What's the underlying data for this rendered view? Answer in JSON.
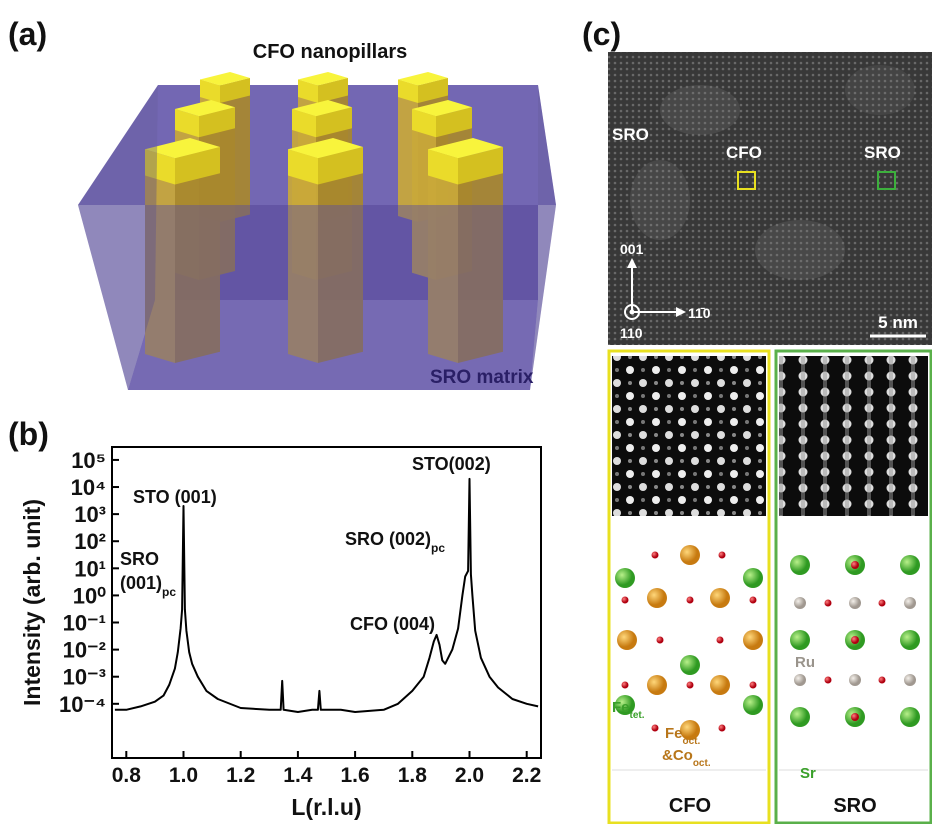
{
  "panel_a": {
    "label": "(a)",
    "pillars_label": "CFO nanopillars",
    "matrix_label": "SRO matrix"
  },
  "panel_b": {
    "label": "(b)"
  },
  "chart_data": {
    "type": "line",
    "xlabel": "L(r.l.u)",
    "ylabel": "Intensity (arb. unit)",
    "log_y": true,
    "color": "#000000",
    "xlim": [
      0.75,
      2.25
    ],
    "ylim": [
      1e-06,
      300000
    ],
    "xticks": [
      0.8,
      {
        "value": 1,
        "label": "1.0"
      },
      1.2,
      1.4,
      1.6,
      1.8,
      {
        "value": 2,
        "label": "2.0"
      },
      2.2
    ],
    "yticks": [
      {
        "value": 100000,
        "label": "10⁵"
      },
      {
        "value": 10000,
        "label": "10⁴"
      },
      {
        "value": 1000,
        "label": "10³"
      },
      {
        "value": 100,
        "label": "10²"
      },
      {
        "value": 10,
        "label": "10¹"
      },
      {
        "value": 1,
        "label": "10⁰"
      },
      {
        "value": 0.1,
        "label": "10⁻¹"
      },
      {
        "value": 0.01,
        "label": "10⁻²"
      },
      {
        "value": 0.001,
        "label": "10⁻³"
      },
      {
        "value": 0.0001,
        "label": "10⁻⁴"
      }
    ],
    "x": [
      0.76,
      0.8,
      0.85,
      0.9,
      0.93,
      0.95,
      0.97,
      0.98,
      0.99,
      0.995,
      1.0,
      1.005,
      1.01,
      1.02,
      1.03,
      1.05,
      1.08,
      1.12,
      1.2,
      1.3,
      1.34,
      1.345,
      1.35,
      1.4,
      1.45,
      1.47,
      1.475,
      1.48,
      1.55,
      1.6,
      1.7,
      1.75,
      1.8,
      1.84,
      1.86,
      1.875,
      1.885,
      1.895,
      1.905,
      1.915,
      1.94,
      1.96,
      1.975,
      1.985,
      1.995,
      2.0,
      2.005,
      2.01,
      2.02,
      2.04,
      2.07,
      2.1,
      2.15,
      2.2,
      2.24
    ],
    "values": [
      6e-05,
      6e-05,
      8e-05,
      0.00012,
      0.0002,
      0.0005,
      0.002,
      0.008,
      0.06,
      0.3,
      2000,
      0.3,
      0.05,
      0.008,
      0.003,
      0.001,
      0.0003,
      0.00015,
      7e-05,
      6e-05,
      6e-05,
      0.0007,
      6e-05,
      5e-05,
      6e-05,
      6e-05,
      0.0003,
      6e-05,
      6e-05,
      5e-05,
      6e-05,
      0.0001,
      0.0003,
      0.001,
      0.005,
      0.02,
      0.035,
      0.015,
      0.004,
      0.003,
      0.01,
      0.06,
      1,
      5,
      8,
      20000,
      6,
      1,
      0.05,
      0.005,
      0.001,
      0.0004,
      0.00015,
      0.0001,
      8e-05
    ],
    "annotations": [
      {
        "lines": [
          "STO (001)"
        ]
      },
      {
        "lines": [
          "SRO",
          "(001)"
        ],
        "sub": "pc"
      },
      {
        "lines": [
          "STO(002)"
        ]
      },
      {
        "lines": [
          "SRO (002)"
        ],
        "sub": "pc"
      },
      {
        "lines": [
          "CFO (004)"
        ]
      }
    ]
  },
  "panel_c": {
    "label": "(c)",
    "image_labels": [
      "SRO",
      "CFO",
      "SRO"
    ],
    "axes": {
      "up": "001",
      "right": "11̄0",
      "out": "110"
    },
    "scale_bar": "5 nm",
    "cfo_legend": {
      "fe_tet": {
        "main": "Fe",
        "sub": "tet."
      },
      "fe_oct": {
        "main": "Fe",
        "sub": "oct."
      },
      "co_oct": {
        "main": "&Co",
        "sub": "oct."
      }
    },
    "sro_legend": {
      "ru": "Ru",
      "sr": "Sr"
    },
    "bottom_labels": [
      "CFO",
      "SRO"
    ]
  }
}
